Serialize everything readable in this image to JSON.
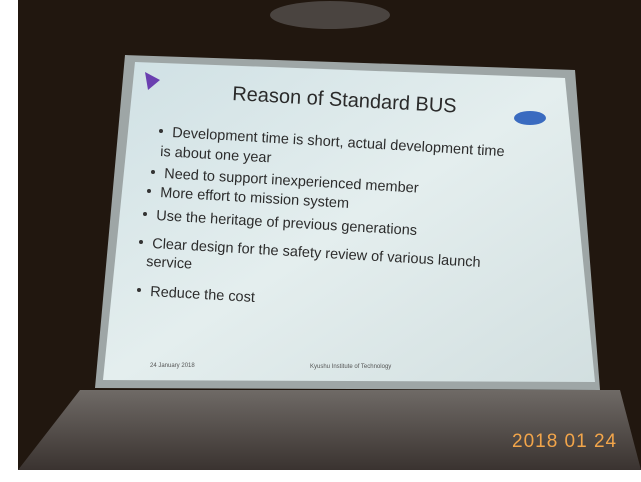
{
  "slide": {
    "title": "Reason of Standard BUS",
    "bullets": [
      [
        "Development time is short, actual development time",
        "is about one year"
      ],
      [
        "Need to support inexperienced member"
      ],
      [
        "More effort to mission system"
      ],
      [
        "Use the heritage of previous generations"
      ],
      [
        "Clear design for the safety review of various launch",
        "service"
      ],
      [
        "Reduce the cost"
      ]
    ],
    "footer_date": "24 January 2018",
    "footer_org": "Kyushu Institute of Technology"
  },
  "photo_stamp": "2018 01 24"
}
